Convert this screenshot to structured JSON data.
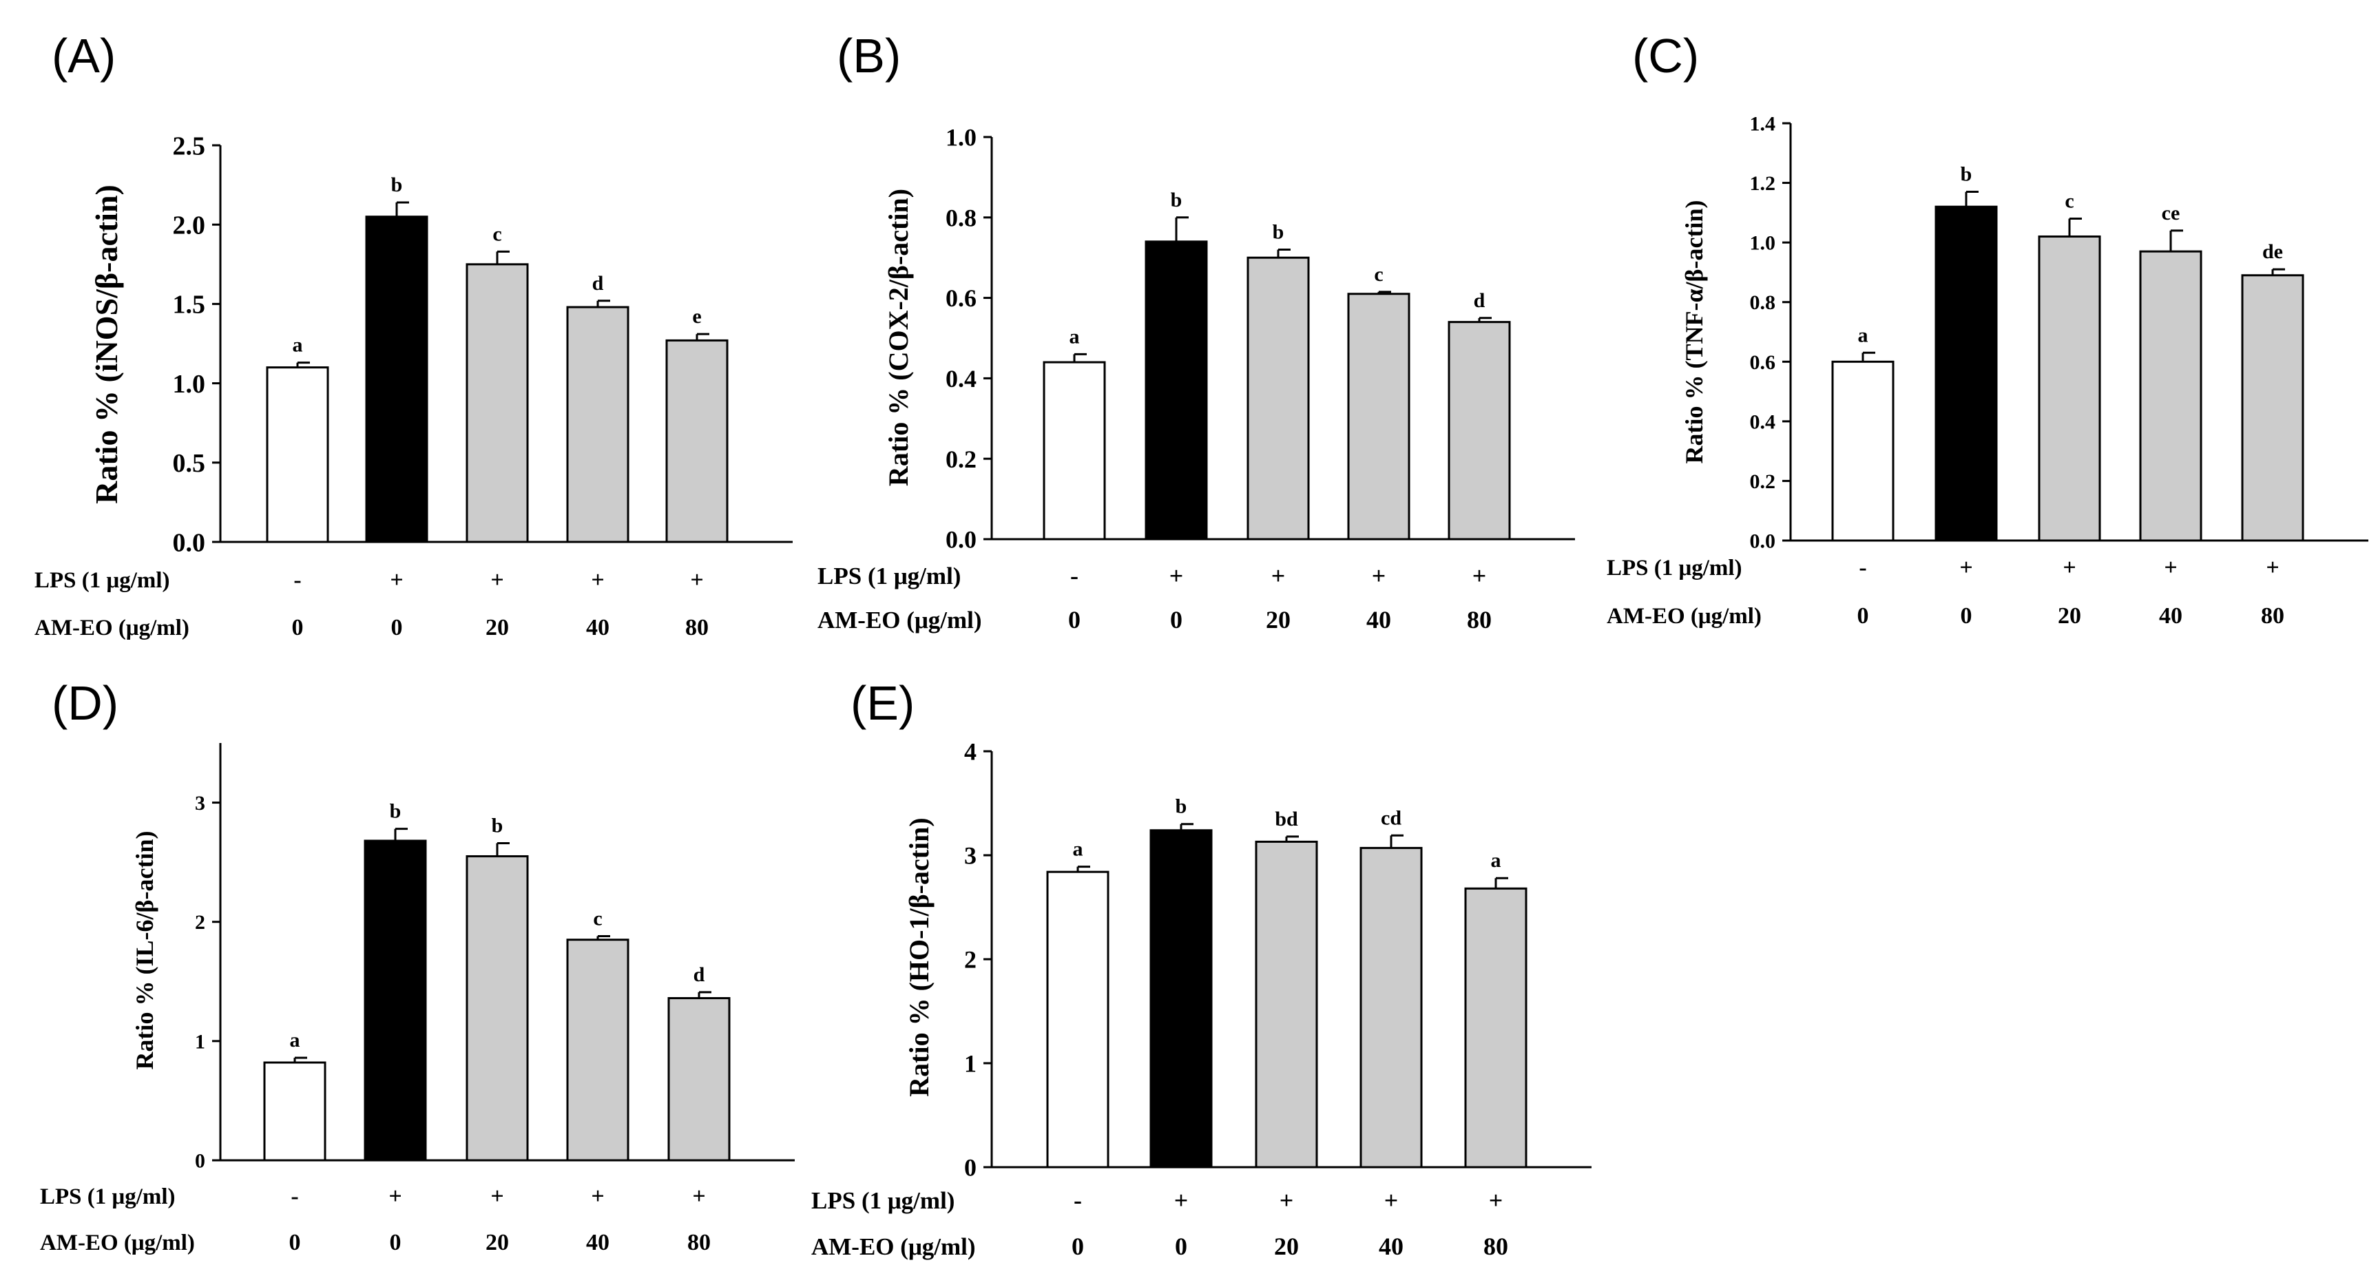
{
  "figure": {
    "row_labels": {
      "lps": "LPS (1 μg/ml)",
      "amEO": "AM-EO (μg/ml)"
    },
    "conditions": [
      {
        "lps": "-",
        "amEO": "0"
      },
      {
        "lps": "+",
        "amEO": "0"
      },
      {
        "lps": "+",
        "amEO": "20"
      },
      {
        "lps": "+",
        "amEO": "40"
      },
      {
        "lps": "+",
        "amEO": "80"
      }
    ],
    "bar_colors": [
      "#ffffff",
      "#000000",
      "#cccccc",
      "#cccccc",
      "#cccccc"
    ]
  },
  "chart_data": [
    {
      "panel": "(A)",
      "type": "bar",
      "ylabel": "Ratio % (iNOS/β-actin)",
      "ylim": [
        0,
        2.5
      ],
      "yticks": [
        "0.0",
        "0.5",
        "1.0",
        "1.5",
        "2.0",
        "2.5"
      ],
      "categories": [
        "0",
        "0",
        "20",
        "40",
        "80"
      ],
      "values": [
        1.1,
        2.05,
        1.75,
        1.48,
        1.27
      ],
      "errors": [
        0.03,
        0.09,
        0.08,
        0.04,
        0.04
      ],
      "labels": [
        "a",
        "b",
        "c",
        "d",
        "e"
      ]
    },
    {
      "panel": "(B)",
      "type": "bar",
      "ylabel": "Ratio % (COX-2/β-actin)",
      "ylim": [
        0,
        1.0
      ],
      "yticks": [
        "0.0",
        "0.2",
        "0.4",
        "0.6",
        "0.8",
        "1.0"
      ],
      "categories": [
        "0",
        "0",
        "20",
        "40",
        "80"
      ],
      "values": [
        0.44,
        0.74,
        0.7,
        0.61,
        0.54
      ],
      "errors": [
        0.02,
        0.06,
        0.02,
        0.005,
        0.01
      ],
      "labels": [
        "a",
        "b",
        "b",
        "c",
        "d"
      ]
    },
    {
      "panel": "(C)",
      "type": "bar",
      "ylabel": "Ratio % (TNF-α/β-actin)",
      "ylim": [
        0,
        1.4
      ],
      "yticks": [
        "0.0",
        "0.2",
        "0.4",
        "0.6",
        "0.8",
        "1.0",
        "1.2",
        "1.4"
      ],
      "categories": [
        "0",
        "0",
        "20",
        "40",
        "80"
      ],
      "values": [
        0.6,
        1.12,
        1.02,
        0.97,
        0.89
      ],
      "errors": [
        0.03,
        0.05,
        0.06,
        0.07,
        0.02
      ],
      "labels": [
        "a",
        "b",
        "c",
        "ce",
        "de"
      ]
    },
    {
      "panel": "(D)",
      "type": "bar",
      "ylabel": "Ratio % (IL-6/β-actin)",
      "ylim": [
        0,
        3.5
      ],
      "yticks": [
        "0",
        "1",
        "2",
        "3"
      ],
      "categories": [
        "0",
        "0",
        "20",
        "40",
        "80"
      ],
      "values": [
        0.82,
        2.68,
        2.55,
        1.85,
        1.36
      ],
      "errors": [
        0.04,
        0.1,
        0.11,
        0.03,
        0.05
      ],
      "labels": [
        "a",
        "b",
        "b",
        "c",
        "d"
      ]
    },
    {
      "panel": "(E)",
      "type": "bar",
      "ylabel": "Ratio % (HO-1/β-actin)",
      "ylim": [
        0,
        4
      ],
      "yticks": [
        "0",
        "1",
        "2",
        "3",
        "4"
      ],
      "categories": [
        "0",
        "0",
        "20",
        "40",
        "80"
      ],
      "values": [
        2.84,
        3.24,
        3.13,
        3.07,
        2.68
      ],
      "errors": [
        0.05,
        0.06,
        0.05,
        0.12,
        0.1
      ],
      "labels": [
        "a",
        "b",
        "bd",
        "cd",
        "a"
      ]
    }
  ]
}
